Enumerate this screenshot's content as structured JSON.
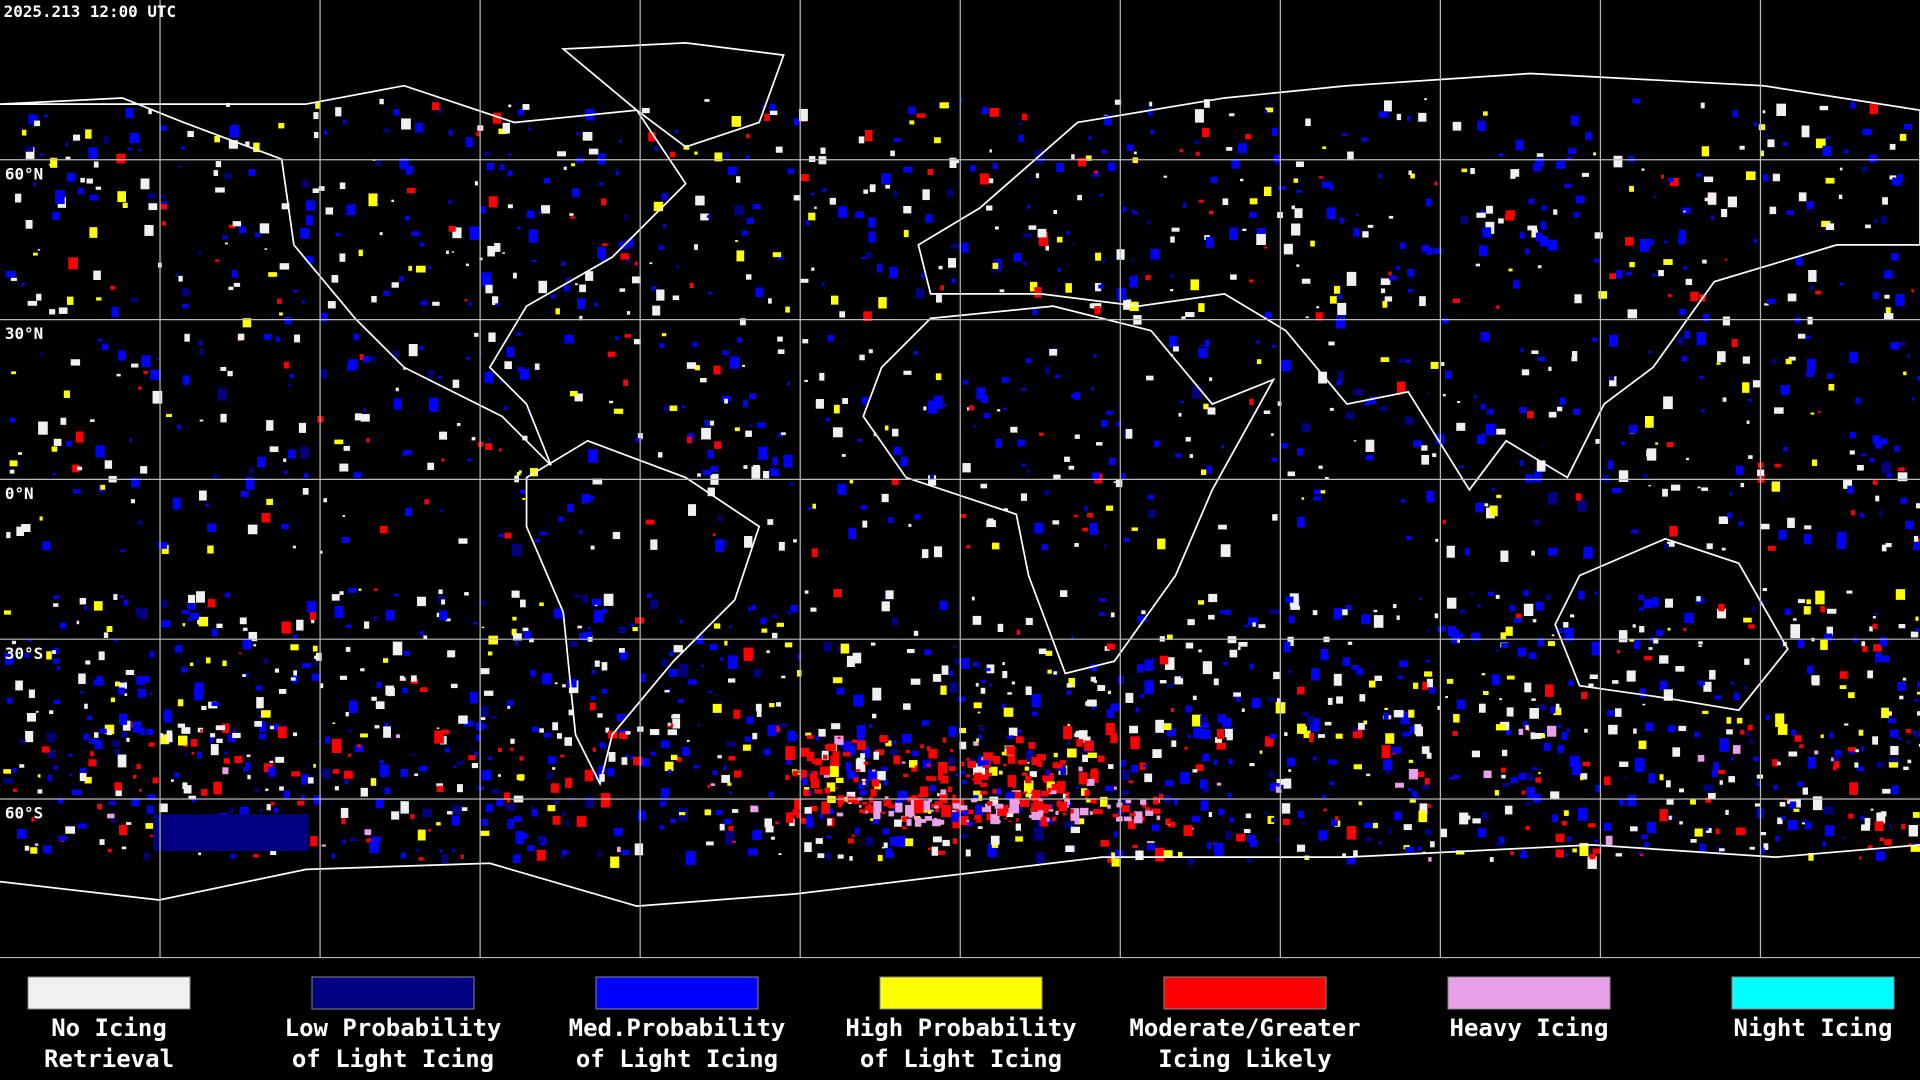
{
  "header": {
    "timestamp": "2025.213 12:00 UTC"
  },
  "map": {
    "latitude_labels": [
      "60°N",
      "30°N",
      "0°N",
      "30°S",
      "60°S"
    ]
  },
  "legend": {
    "items": [
      {
        "color": "#f0f0f0",
        "lines": [
          "No Icing",
          "Retrieval"
        ]
      },
      {
        "color": "#000080",
        "lines": [
          "Low Probability",
          "of Light Icing"
        ]
      },
      {
        "color": "#0000ff",
        "lines": [
          "Med.Probability",
          "of Light Icing"
        ]
      },
      {
        "color": "#ffff00",
        "lines": [
          "High Probability",
          "of Light Icing"
        ]
      },
      {
        "color": "#ff0000",
        "lines": [
          "Moderate/Greater",
          "Icing Likely"
        ]
      },
      {
        "color": "#e8a0e8",
        "lines": [
          "Heavy Icing"
        ]
      },
      {
        "color": "#00ffff",
        "lines": [
          "Night Icing"
        ]
      }
    ]
  }
}
